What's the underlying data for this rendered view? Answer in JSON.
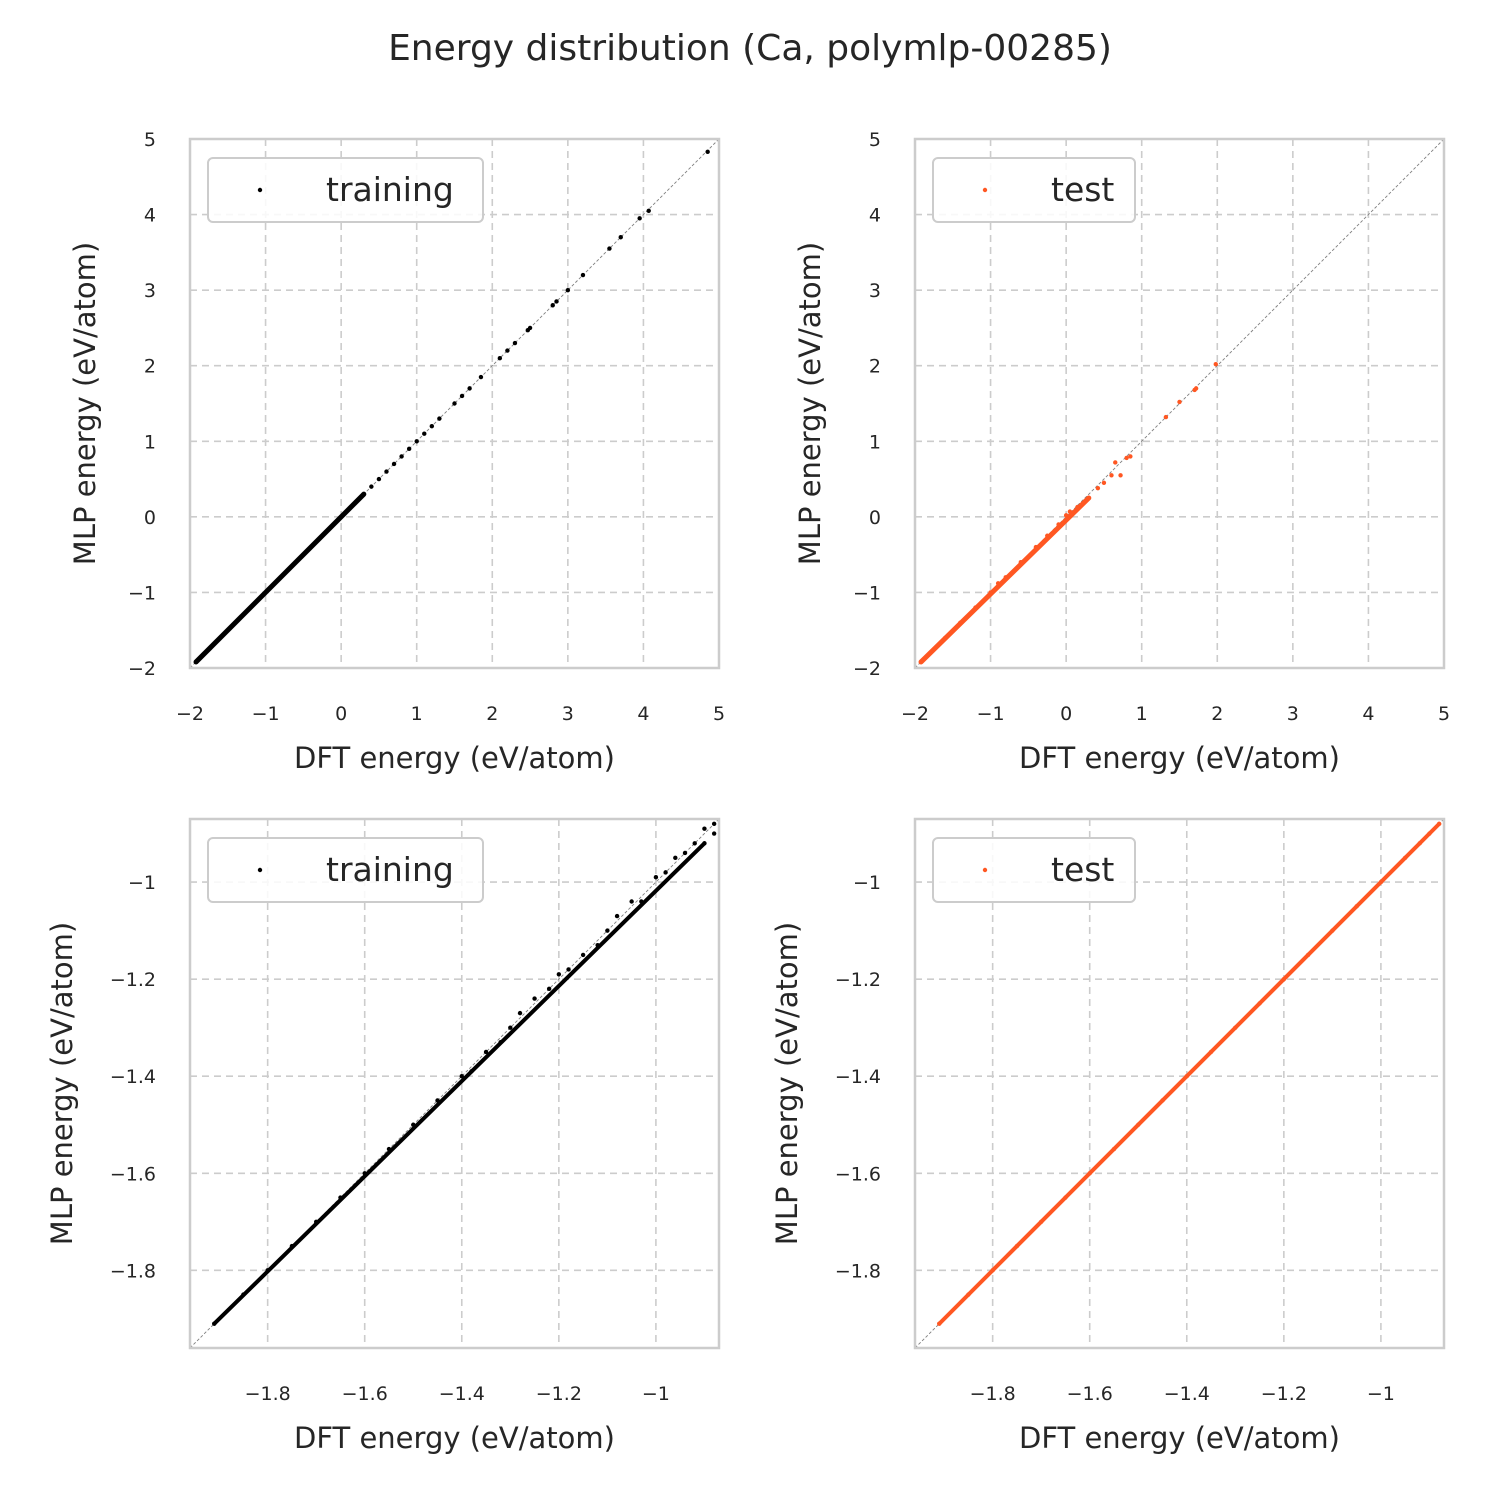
{
  "title": "Energy distribution (Ca, polymlp-00285)",
  "colors": {
    "training": "#000000",
    "test": "#ff5722",
    "grid": "#cccccc",
    "text": "#262626"
  },
  "chart_data": [
    {
      "type": "scatter",
      "xlabel": "DFT energy (eV/atom)",
      "ylabel": "MLP energy (eV/atom)",
      "xlim": [
        -2,
        5
      ],
      "ylim": [
        -2,
        5
      ],
      "xticks": [
        -2,
        -1,
        0,
        1,
        2,
        3,
        4,
        5
      ],
      "yticks": [
        -2,
        -1,
        0,
        1,
        2,
        3,
        4,
        5
      ],
      "grid": true,
      "legend": "upper-left",
      "series": [
        {
          "name": "training",
          "color": "#000000",
          "points": [
            [
              -1.92,
              -1.92
            ],
            [
              -1.8,
              -1.8
            ],
            [
              -1.6,
              -1.6
            ],
            [
              -1.4,
              -1.4
            ],
            [
              -1.2,
              -1.2
            ],
            [
              -1.0,
              -1.0
            ],
            [
              -0.8,
              -0.8
            ],
            [
              -0.6,
              -0.6
            ],
            [
              -0.4,
              -0.4
            ],
            [
              -0.2,
              -0.2
            ],
            [
              0.0,
              0.0
            ],
            [
              0.1,
              0.1
            ],
            [
              0.2,
              0.2
            ],
            [
              0.3,
              0.3
            ],
            [
              0.4,
              0.4
            ],
            [
              0.5,
              0.5
            ],
            [
              0.6,
              0.6
            ],
            [
              0.7,
              0.7
            ],
            [
              0.8,
              0.8
            ],
            [
              0.9,
              0.9
            ],
            [
              1.0,
              1.0
            ],
            [
              1.1,
              1.1
            ],
            [
              1.2,
              1.2
            ],
            [
              1.3,
              1.3
            ],
            [
              1.5,
              1.5
            ],
            [
              1.6,
              1.6
            ],
            [
              1.7,
              1.7
            ],
            [
              1.85,
              1.85
            ],
            [
              2.1,
              2.1
            ],
            [
              2.2,
              2.2
            ],
            [
              2.3,
              2.3
            ],
            [
              2.47,
              2.47
            ],
            [
              2.5,
              2.5
            ],
            [
              2.8,
              2.8
            ],
            [
              2.85,
              2.85
            ],
            [
              3.0,
              3.0
            ],
            [
              3.2,
              3.2
            ],
            [
              3.55,
              3.55
            ],
            [
              3.7,
              3.7
            ],
            [
              3.95,
              3.95
            ],
            [
              4.07,
              4.05
            ],
            [
              4.85,
              4.83
            ]
          ]
        }
      ]
    },
    {
      "type": "scatter",
      "xlabel": "DFT energy (eV/atom)",
      "ylabel": "MLP energy (eV/atom)",
      "xlim": [
        -2,
        5
      ],
      "ylim": [
        -2,
        5
      ],
      "xticks": [
        -2,
        -1,
        0,
        1,
        2,
        3,
        4,
        5
      ],
      "yticks": [
        -2,
        -1,
        0,
        1,
        2,
        3,
        4,
        5
      ],
      "grid": true,
      "legend": "upper-left",
      "series": [
        {
          "name": "test",
          "color": "#ff5722",
          "points": [
            [
              -1.92,
              -1.92
            ],
            [
              -1.8,
              -1.8
            ],
            [
              -1.6,
              -1.6
            ],
            [
              -1.4,
              -1.4
            ],
            [
              -1.2,
              -1.2
            ],
            [
              -1.0,
              -1.0
            ],
            [
              -0.9,
              -0.88
            ],
            [
              -0.8,
              -0.8
            ],
            [
              -0.6,
              -0.6
            ],
            [
              -0.4,
              -0.4
            ],
            [
              -0.25,
              -0.25
            ],
            [
              -0.1,
              -0.1
            ],
            [
              0.0,
              0.02
            ],
            [
              0.05,
              0.07
            ],
            [
              0.15,
              0.13
            ],
            [
              0.3,
              0.25
            ],
            [
              0.42,
              0.38
            ],
            [
              0.5,
              0.45
            ],
            [
              0.6,
              0.55
            ],
            [
              0.65,
              0.72
            ],
            [
              0.72,
              0.55
            ],
            [
              0.8,
              0.78
            ],
            [
              0.85,
              0.8
            ],
            [
              1.32,
              1.32
            ],
            [
              1.5,
              1.52
            ],
            [
              1.7,
              1.68
            ],
            [
              1.72,
              1.7
            ],
            [
              1.98,
              2.02
            ]
          ]
        }
      ]
    },
    {
      "type": "scatter",
      "xlabel": "DFT energy (eV/atom)",
      "ylabel": "MLP energy (eV/atom)",
      "xlim": [
        -1.96,
        -0.87
      ],
      "ylim": [
        -1.96,
        -0.87
      ],
      "xticks": [
        -1.8,
        -1.6,
        -1.4,
        -1.2,
        -1.0
      ],
      "yticks": [
        -1.8,
        -1.6,
        -1.4,
        -1.2,
        -1.0
      ],
      "grid": true,
      "legend": "upper-left",
      "series": [
        {
          "name": "training",
          "color": "#000000",
          "points": [
            [
              -1.91,
              -1.91
            ],
            [
              -1.85,
              -1.85
            ],
            [
              -1.8,
              -1.8
            ],
            [
              -1.75,
              -1.75
            ],
            [
              -1.7,
              -1.7
            ],
            [
              -1.65,
              -1.65
            ],
            [
              -1.6,
              -1.6
            ],
            [
              -1.55,
              -1.55
            ],
            [
              -1.5,
              -1.5
            ],
            [
              -1.45,
              -1.45
            ],
            [
              -1.4,
              -1.4
            ],
            [
              -1.38,
              -1.39
            ],
            [
              -1.35,
              -1.35
            ],
            [
              -1.32,
              -1.33
            ],
            [
              -1.3,
              -1.3
            ],
            [
              -1.28,
              -1.27
            ],
            [
              -1.25,
              -1.24
            ],
            [
              -1.22,
              -1.22
            ],
            [
              -1.2,
              -1.19
            ],
            [
              -1.18,
              -1.18
            ],
            [
              -1.15,
              -1.15
            ],
            [
              -1.12,
              -1.13
            ],
            [
              -1.1,
              -1.1
            ],
            [
              -1.08,
              -1.07
            ],
            [
              -1.05,
              -1.04
            ],
            [
              -1.03,
              -1.04
            ],
            [
              -1.0,
              -0.99
            ],
            [
              -0.98,
              -0.98
            ],
            [
              -0.96,
              -0.95
            ],
            [
              -0.94,
              -0.94
            ],
            [
              -0.92,
              -0.92
            ],
            [
              -0.9,
              -0.89
            ],
            [
              -0.88,
              -0.88
            ],
            [
              -0.88,
              -0.9
            ],
            [
              -0.9,
              -0.92
            ]
          ]
        }
      ]
    },
    {
      "type": "scatter",
      "xlabel": "DFT energy (eV/atom)",
      "ylabel": "MLP energy (eV/atom)",
      "xlim": [
        -1.96,
        -0.87
      ],
      "ylim": [
        -1.96,
        -0.87
      ],
      "xticks": [
        -1.8,
        -1.6,
        -1.4,
        -1.2,
        -1.0
      ],
      "yticks": [
        -1.8,
        -1.6,
        -1.4,
        -1.2,
        -1.0
      ],
      "grid": true,
      "legend": "upper-left",
      "series": [
        {
          "name": "test",
          "color": "#ff5722",
          "points": [
            [
              -1.91,
              -1.91
            ],
            [
              -1.85,
              -1.85
            ],
            [
              -1.8,
              -1.8
            ],
            [
              -1.75,
              -1.75
            ],
            [
              -1.7,
              -1.7
            ],
            [
              -1.65,
              -1.65
            ],
            [
              -1.6,
              -1.6
            ],
            [
              -1.55,
              -1.55
            ],
            [
              -1.5,
              -1.5
            ],
            [
              -1.45,
              -1.45
            ],
            [
              -1.4,
              -1.4
            ],
            [
              -1.35,
              -1.35
            ],
            [
              -1.3,
              -1.3
            ],
            [
              -1.25,
              -1.25
            ],
            [
              -1.2,
              -1.2
            ],
            [
              -1.15,
              -1.15
            ],
            [
              -1.1,
              -1.1
            ],
            [
              -1.05,
              -1.05
            ],
            [
              -1.0,
              -1.0
            ],
            [
              -0.95,
              -0.95
            ],
            [
              -0.92,
              -0.92
            ],
            [
              -0.9,
              -0.9
            ],
            [
              -0.88,
              -0.88
            ]
          ]
        }
      ]
    }
  ]
}
